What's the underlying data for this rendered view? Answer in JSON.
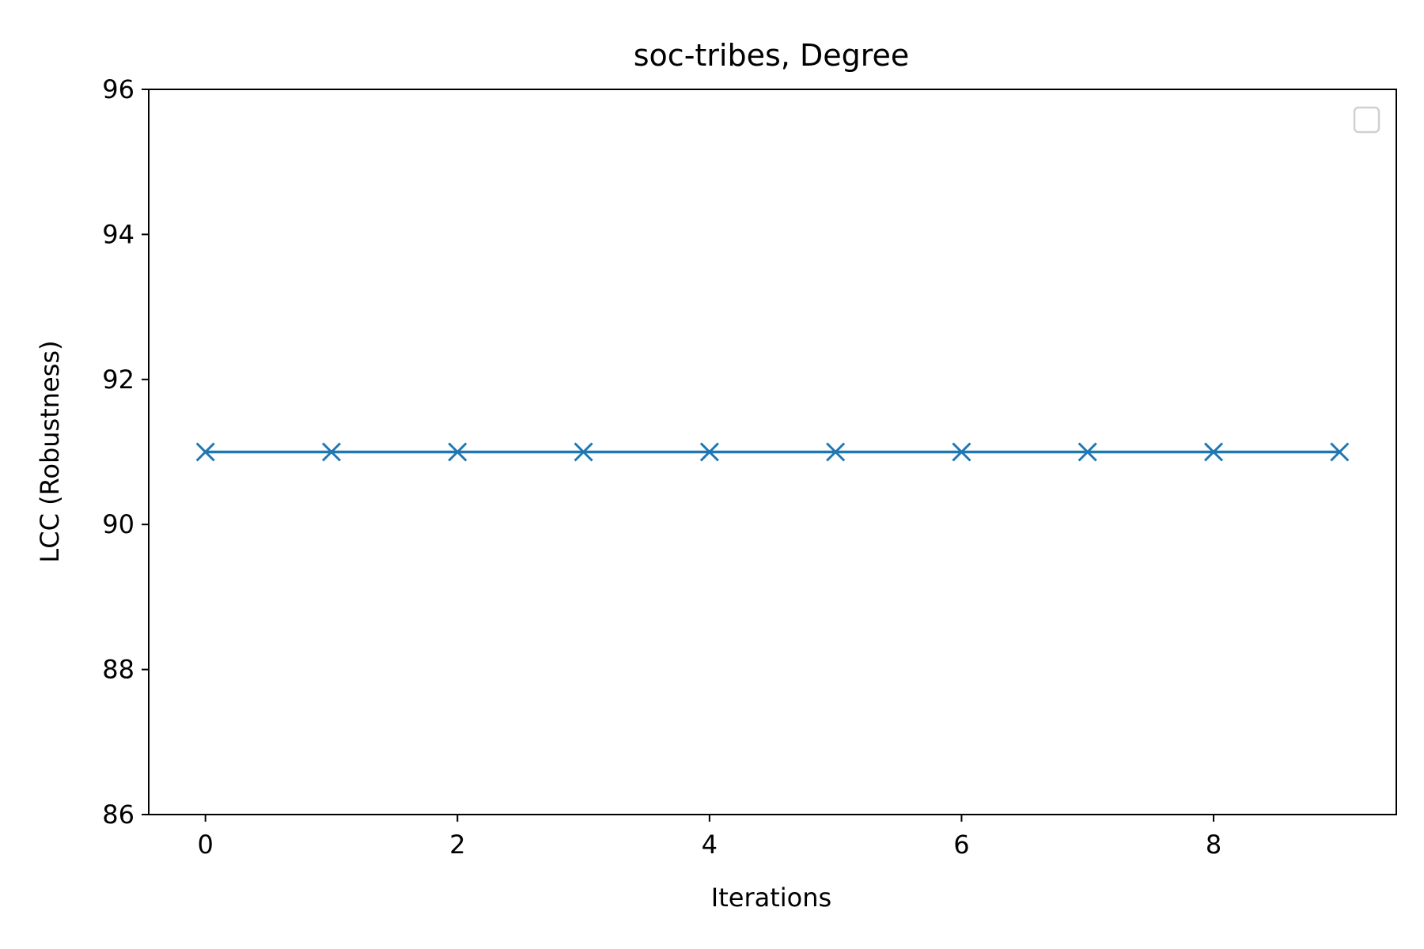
{
  "chart_data": {
    "type": "line",
    "title": "soc-tribes, Degree",
    "xlabel": "Iterations",
    "ylabel": "LCC (Robustness)",
    "x": [
      0,
      1,
      2,
      3,
      4,
      5,
      6,
      7,
      8,
      9
    ],
    "series": [
      {
        "values": [
          91,
          91,
          91,
          91,
          91,
          91,
          91,
          91,
          91,
          91
        ],
        "color": "#1f77b4",
        "marker": "x"
      }
    ],
    "xlim": [
      -0.45,
      9.45
    ],
    "ylim": [
      86,
      96
    ],
    "xticks": [
      0,
      2,
      4,
      6,
      8
    ],
    "xtick_labels": [
      "0",
      "2",
      "4",
      "6",
      "8"
    ],
    "yticks": [
      86,
      88,
      90,
      92,
      94,
      96
    ],
    "ytick_labels": [
      "86",
      "88",
      "90",
      "92",
      "94",
      "96"
    ],
    "grid": false,
    "legend": {
      "placement": "top-right",
      "entries": []
    }
  }
}
